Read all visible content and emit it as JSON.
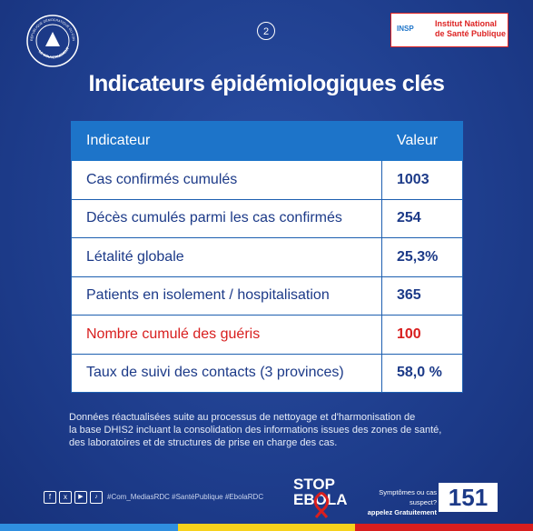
{
  "page_number": "2",
  "logo_left": {
    "top": "RÉPUBLIQUE DÉMOCRATIQUE DU CONGO",
    "bottom": "LE GOUVERNEMENT"
  },
  "logo_right": {
    "acronym": "INSP",
    "line1": "Institut National",
    "line2": "de Santé Publique"
  },
  "title": "Indicateurs épidémiologiques clés",
  "table": {
    "header": [
      "Indicateur",
      "Valeur"
    ],
    "rows": [
      [
        "Cas confirmés cumulés",
        "1003"
      ],
      [
        "Décès cumulés parmi les cas confirmés",
        "254"
      ],
      [
        "Létalité globale",
        "25,3%"
      ],
      [
        "Patients en isolement / hospitalisation",
        "365"
      ],
      [
        "Nombre cumulé des guéris",
        "100"
      ],
      [
        "Taux de suivi des contacts (3 provinces)",
        "58,0 %"
      ]
    ]
  },
  "note": [
    "Données réactualisées suite au processus de nettoyage et d'harmonisation de",
    "la base DHIS2 incluant la consolidation des informations issues des zones de santé,",
    "des laboratoires et de structures de prise en charge des cas."
  ],
  "footer": {
    "hashtags": "#Com_MediasRDC #SantéPublique #EbolaRDC",
    "campaign": [
      "STOP",
      "EBOLA"
    ],
    "hotline_question": "Symptômes ou cas suspect?",
    "hotline_call": "appelez Gratuitement",
    "hotline_number": "151"
  }
}
